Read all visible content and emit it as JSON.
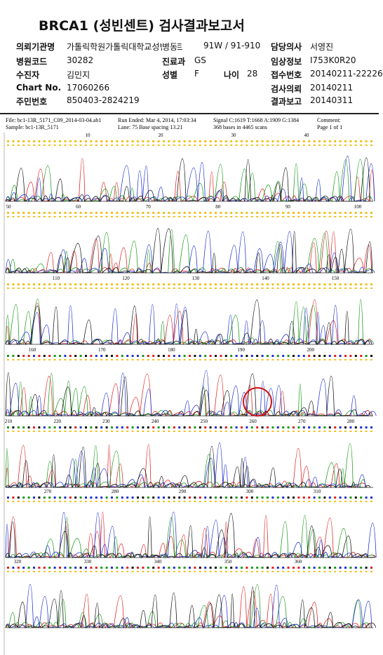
{
  "header": {
    "title": "BRCA1 (성빈센트) 검사결과보고서"
  },
  "info": [
    {
      "label": "의뢰기관명",
      "value": "가톨릭학원가톨릭대학교성빈센트",
      "ward_label": "병동",
      "ward": "91W / 91-910",
      "label2": "담당의사",
      "value2": "서영진"
    },
    {
      "label": "병원코드",
      "value": "30282",
      "label_mid": "진료과",
      "value_mid": "GS",
      "label2": "임상정보",
      "value2": "I753K0R20"
    },
    {
      "label": "수진자",
      "value": "김민지",
      "label_mid": "성별",
      "value_mid": "F",
      "label_age": "나이",
      "value_age": "28",
      "label2": "접수번호",
      "value2": "20140211-22226"
    },
    {
      "label": "Chart No.",
      "value": "17060266",
      "label2": "검사의뢰",
      "value2": "20140211"
    },
    {
      "label": "주민번호",
      "value": "850403-2824219",
      "label2": "결과보고",
      "value2": "20140311"
    }
  ],
  "chromatogram": {
    "file": "File: bc1-13R_5171_C09_2014-03-04.ab1",
    "sample": "Sample: bc1-13R_5171",
    "run": "Run Ended: Mar 4, 2014, 17:03:34",
    "lane": "Lane: 75   Base spacing 13.21",
    "signal": "Signal C:1619 T:1668 A:1909 G:1384",
    "bases": "368 bases in 4465 scans",
    "comment": "Comment:",
    "page": "Page 1 of 1",
    "panels": [
      {
        "ticks": [
          "10",
          "20",
          "30",
          "40"
        ]
      },
      {
        "ticks": [
          "50",
          "60",
          "70",
          "80",
          "90",
          "100"
        ]
      },
      {
        "ticks": [
          "110",
          "120",
          "130",
          "140",
          "150"
        ]
      },
      {
        "ticks": [
          "160",
          "170",
          "180",
          "190",
          "200"
        ]
      },
      {
        "ticks": [
          "210",
          "220",
          "230",
          "240",
          "250",
          "260",
          "270",
          "280"
        ]
      },
      {
        "ticks": [
          "270",
          "280",
          "290",
          "300",
          "310"
        ]
      },
      {
        "ticks": [
          "320",
          "330",
          "340",
          "350",
          "360"
        ]
      }
    ]
  }
}
